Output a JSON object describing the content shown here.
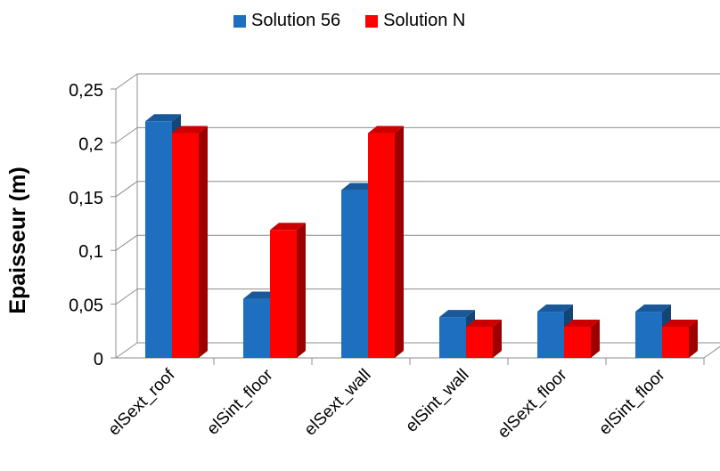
{
  "chart_data": {
    "type": "bar",
    "title": "",
    "xlabel": "",
    "ylabel": "Epaisseur (m)",
    "categories": [
      "elSext_roof",
      "elSint_floor",
      "elSext_wall",
      "elSint_wall",
      "elSext_floor",
      "elSint_floor"
    ],
    "series": [
      {
        "name": "Solution 56",
        "color": "#1f6fc0",
        "values": [
          0.22,
          0.055,
          0.156,
          0.038,
          0.043,
          0.043
        ]
      },
      {
        "name": "Solution N",
        "color": "#ff0000",
        "values": [
          0.209,
          0.119,
          0.209,
          0.029,
          0.029,
          0.029
        ]
      }
    ],
    "ylim": [
      0,
      0.25
    ],
    "yticks": [
      0,
      0.05,
      0.1,
      0.15,
      0.2,
      0.25
    ],
    "ytick_labels": [
      "0",
      "0,05",
      "0,1",
      "0,15",
      "0,2",
      "0,25"
    ],
    "grid": true,
    "legend_position": "top"
  }
}
